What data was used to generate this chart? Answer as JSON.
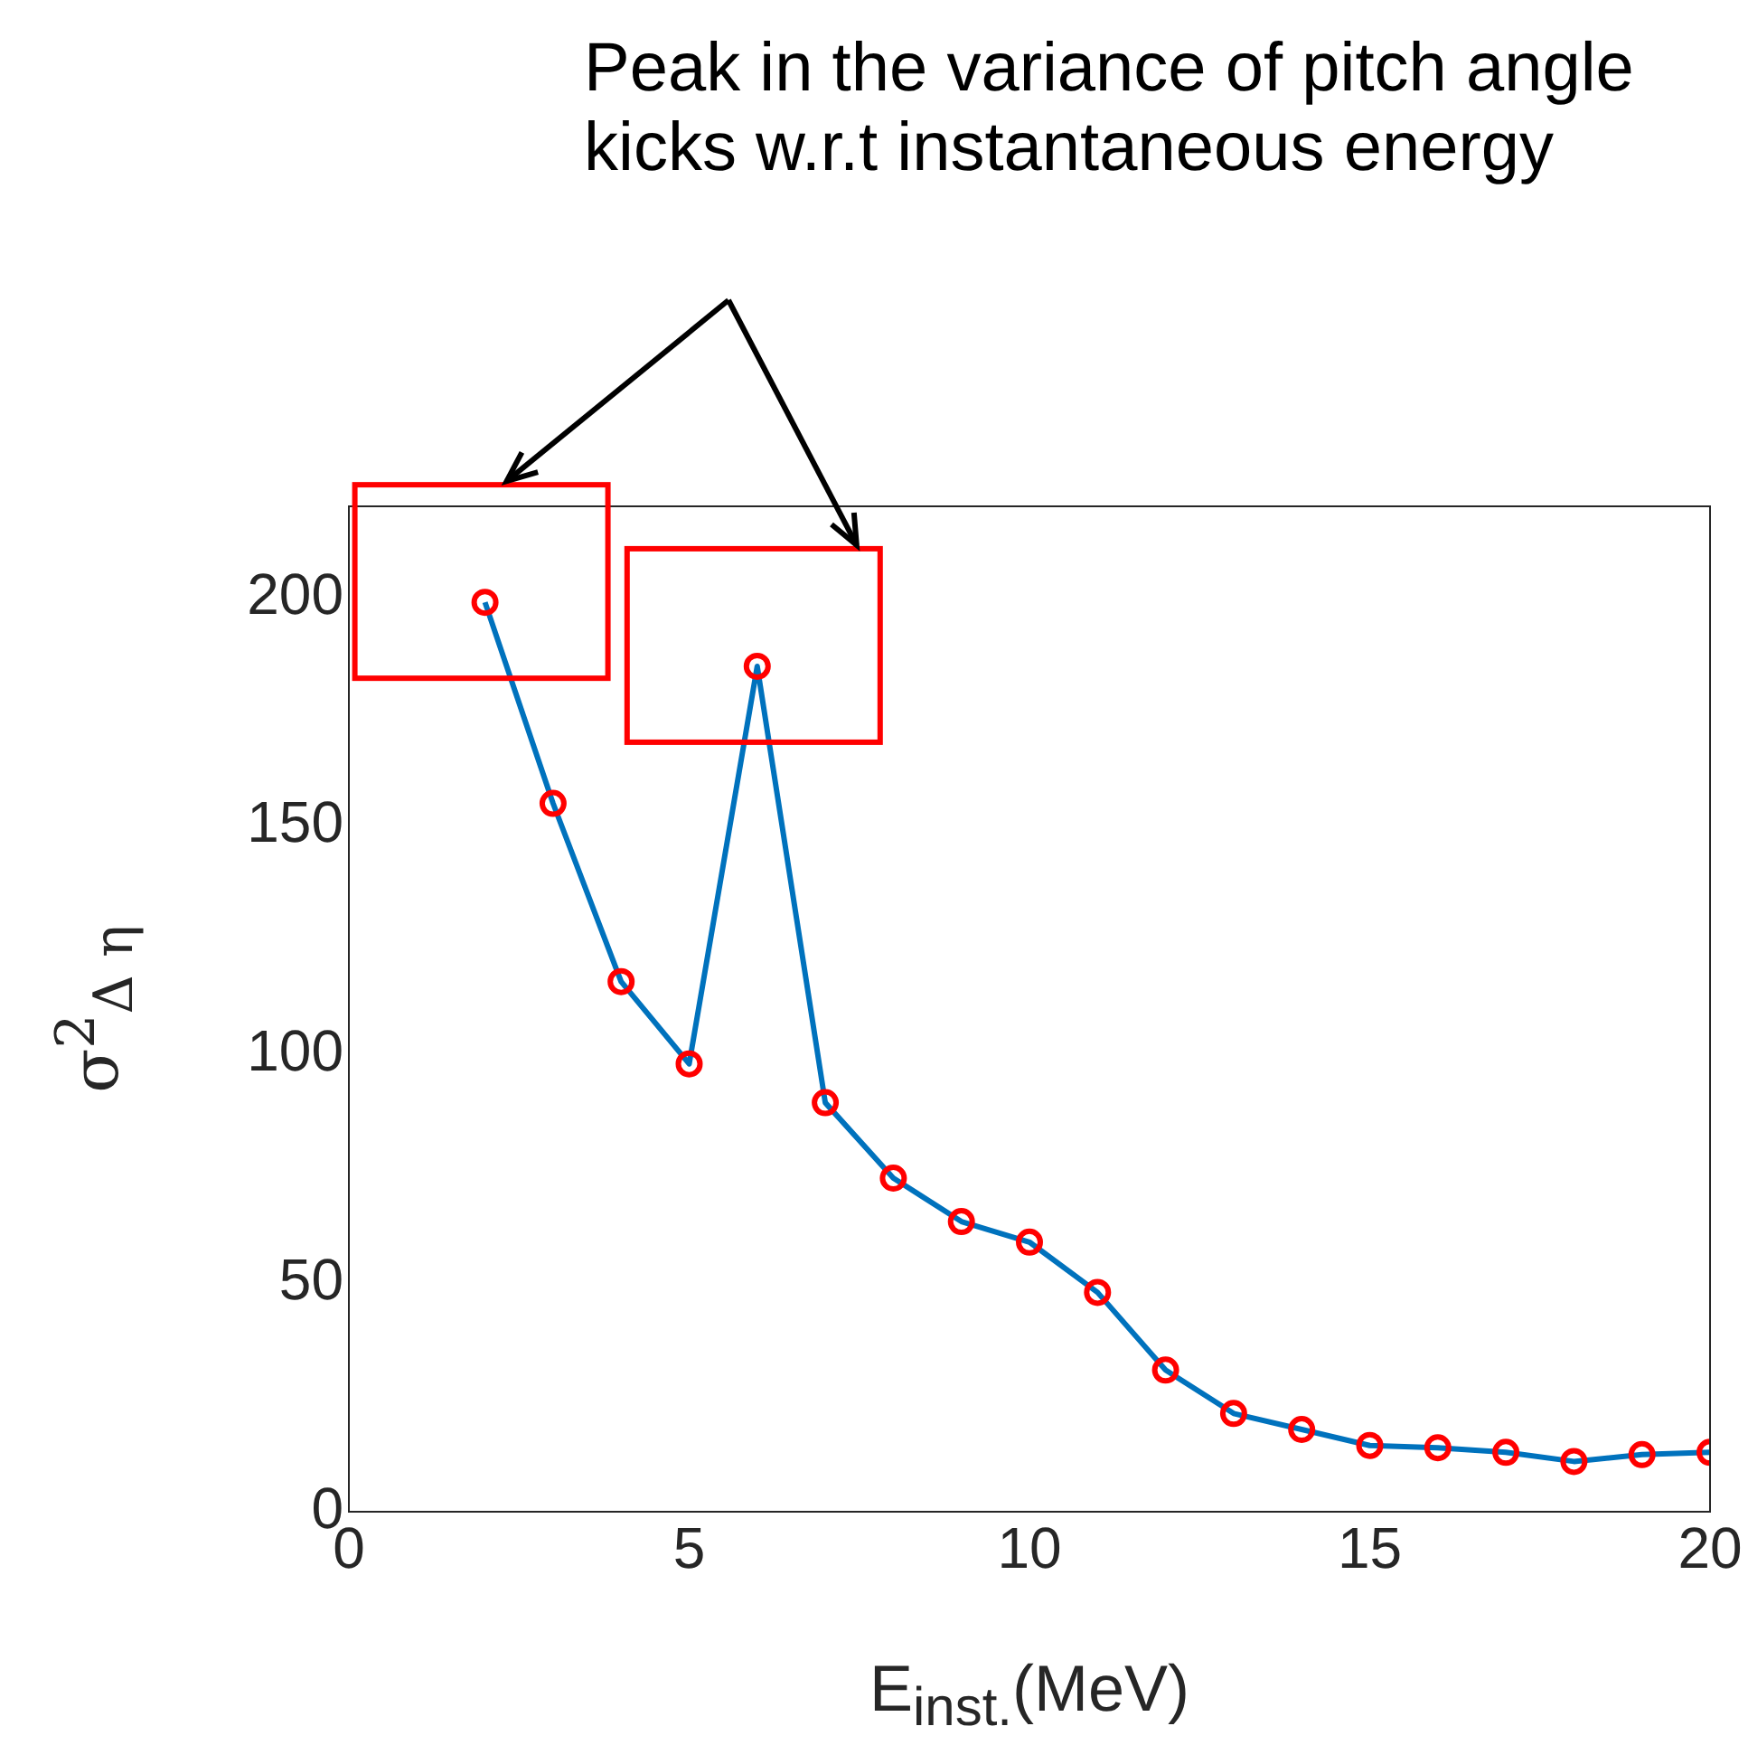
{
  "chart_data": {
    "type": "line",
    "xlabel": "E$_{inst.}$(MeV)",
    "ylabel": "σ$^{2}$$_{Δ η}$",
    "annotations": [
      "Peak in the variance of pitch angle kicks w.r.t instantaneous energy"
    ],
    "x": [
      2,
      3,
      4,
      5,
      6,
      7,
      8,
      9,
      10,
      11,
      12,
      13,
      14,
      15,
      16,
      17,
      18,
      19,
      20
    ],
    "series": [
      {
        "color": "#0072bd",
        "values": [
          199,
          155,
          116,
          98,
          185,
          89.5,
          73,
          63.5,
          59,
          48,
          31,
          21.5,
          18,
          14.5,
          14,
          13,
          11,
          12.5,
          13
        ]
      }
    ],
    "xlim": [
      0,
      20
    ],
    "xticks": [
      0,
      5,
      10,
      15,
      20
    ],
    "ylim": [
      0,
      220
    ],
    "yticks": [
      0,
      50,
      100,
      150,
      200
    ],
    "grid": false,
    "legend": false,
    "marker": "circle",
    "line_style": "solid"
  }
}
